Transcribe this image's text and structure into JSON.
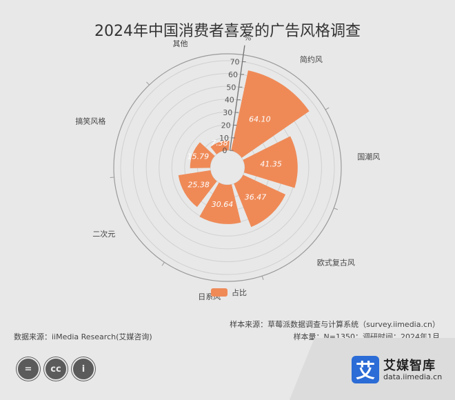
{
  "title": "2024年中国消费者喜爱的广告风格调查",
  "chart_data": {
    "type": "bar",
    "polar": true,
    "categories": [
      "简约风",
      "国潮风",
      "欧式复古风",
      "日系风",
      "二次元",
      "搞笑风格",
      "其他"
    ],
    "series": [
      {
        "name": "占比",
        "values": [
          64.1,
          41.35,
          36.47,
          30.64,
          25.38,
          15.79,
          7.38
        ]
      }
    ],
    "unit": "%",
    "rlim": [
      0,
      70
    ],
    "ticks": [
      0,
      10,
      20,
      30,
      40,
      50,
      60,
      70
    ],
    "color": "#ef8a57",
    "legend": "bottom-center"
  },
  "legend": {
    "label": "占比"
  },
  "source": {
    "left": "数据来源：iiMedia Research(艾媒咨询)",
    "sample_source": "样本来源：草莓派数据调查与计算系统（survey.iimedia.cn）",
    "sample_info": "样本量：N=1350；调研时间：2024年1月"
  },
  "brand": {
    "logo_char": "艾",
    "name": "艾媒智库",
    "url": "data.iimedia.cn"
  },
  "license_icons": [
    {
      "icon": "equals-icon",
      "glyph": "="
    },
    {
      "icon": "cc-icon",
      "glyph": "cc"
    },
    {
      "icon": "person-icon",
      "glyph": "i"
    }
  ]
}
